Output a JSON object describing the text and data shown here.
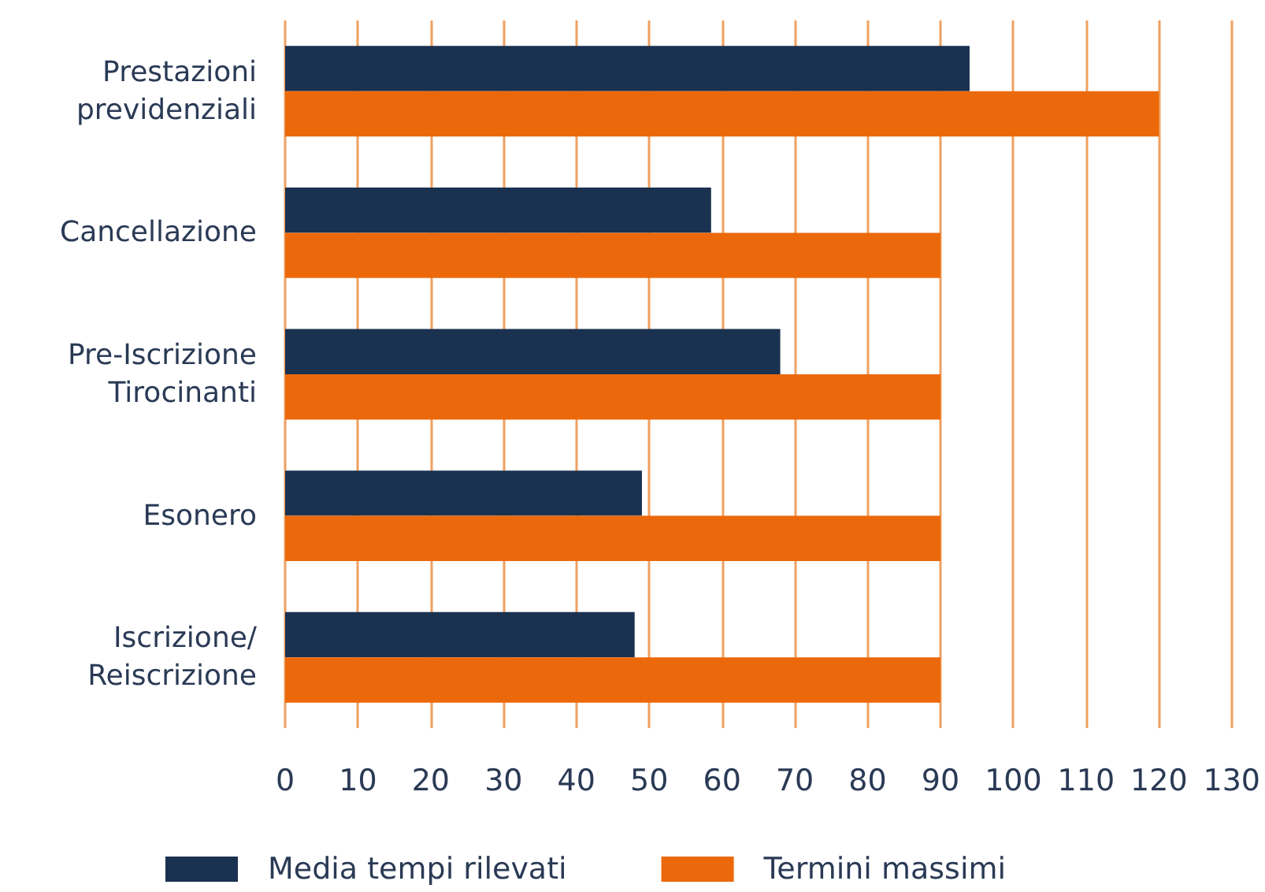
{
  "chart_data": {
    "type": "bar",
    "orientation": "horizontal",
    "categories": [
      "Prestazioni\nprevidenziali",
      "Cancellazione",
      "Pre-Iscrizione\nTirocinanti",
      "Esonero",
      "Iscrizione/\nReiscrizione"
    ],
    "series": [
      {
        "name": "Media tempi rilevati",
        "color": "#1a3150",
        "values": [
          94,
          58.5,
          68,
          49,
          48
        ]
      },
      {
        "name": "Termini massimi",
        "color": "#eb690b",
        "values": [
          120,
          90,
          90,
          90,
          90
        ]
      }
    ],
    "xlim": [
      0,
      130
    ],
    "xticks": [
      0,
      10,
      20,
      30,
      40,
      50,
      60,
      70,
      80,
      90,
      100,
      110,
      120,
      130
    ],
    "grid": "x",
    "legend": "bottom"
  }
}
